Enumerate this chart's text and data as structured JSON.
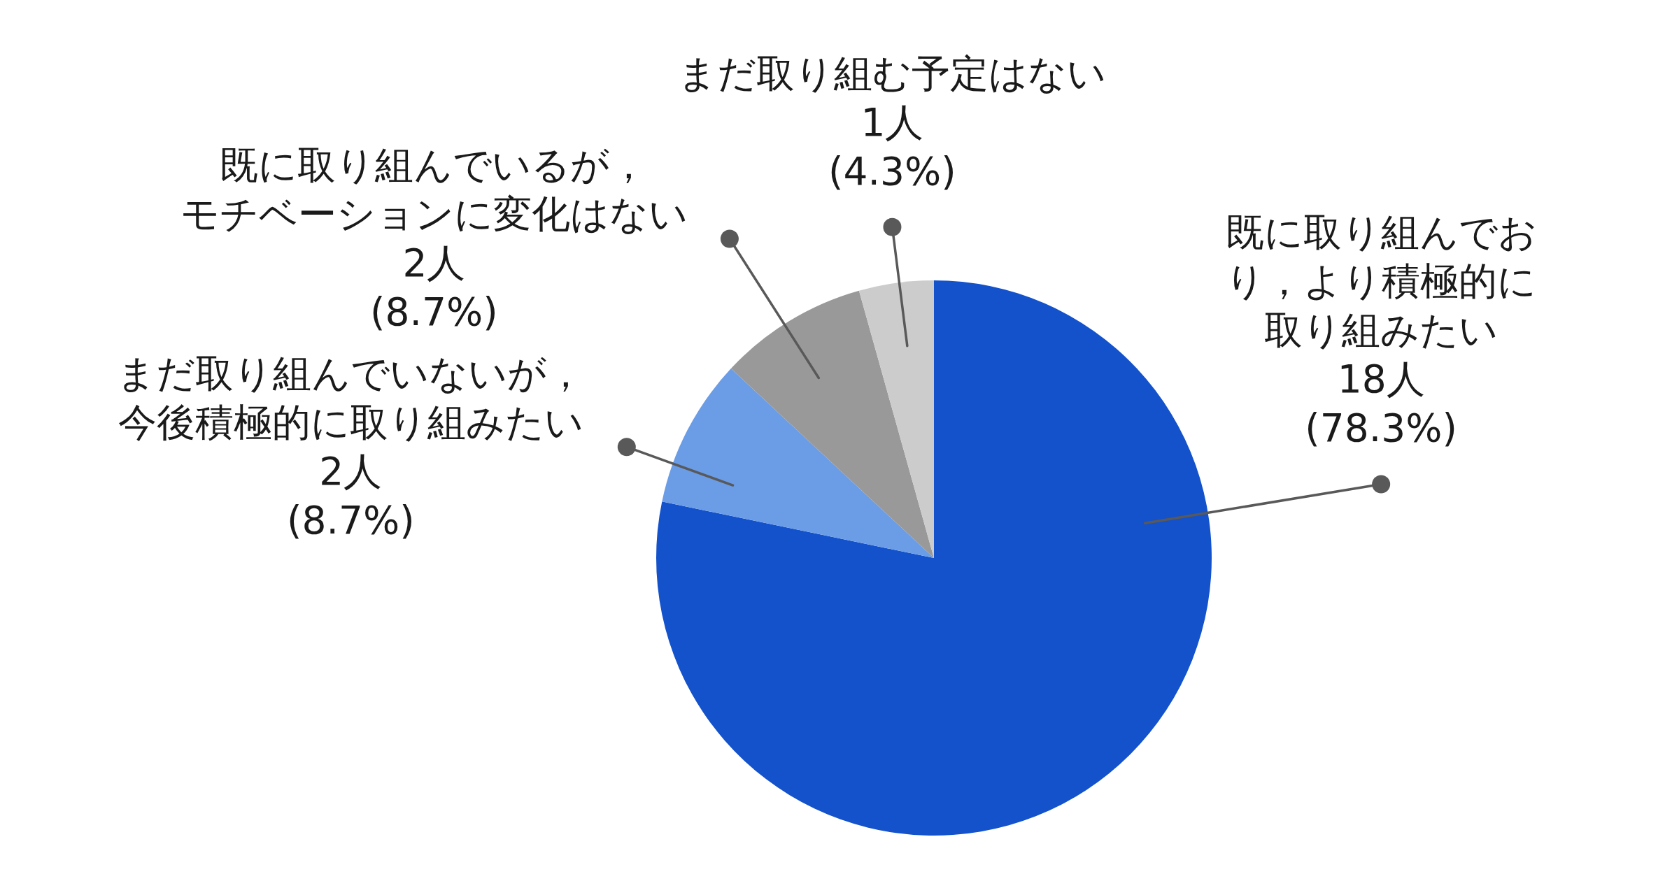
{
  "chart_data": {
    "type": "pie",
    "categories": [
      "既に取り組んでおり，より積極的に取り組みたい",
      "まだ取り組んでいないが，今後積極的に取り組みたい",
      "既に取り組んでいるが，モチベーションに変化はない",
      "まだ取り組む予定はない"
    ],
    "values": [
      18,
      2,
      2,
      1
    ],
    "colors": [
      "#1352cb",
      "#6b9ce6",
      "#999999",
      "#cccccc"
    ],
    "value_labels": [
      "18人\n(78.3%)",
      "2人\n(8.7%)",
      "2人\n(8.7%)",
      "1人\n(4.3%)"
    ]
  }
}
